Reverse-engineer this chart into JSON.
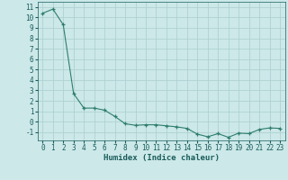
{
  "x": [
    0,
    1,
    2,
    3,
    4,
    5,
    6,
    7,
    8,
    9,
    10,
    11,
    12,
    13,
    14,
    15,
    16,
    17,
    18,
    19,
    20,
    21,
    22,
    23
  ],
  "y": [
    10.4,
    10.8,
    9.3,
    2.7,
    1.3,
    1.3,
    1.1,
    0.5,
    -0.2,
    -0.35,
    -0.3,
    -0.3,
    -0.4,
    -0.5,
    -0.65,
    -1.2,
    -1.45,
    -1.15,
    -1.5,
    -1.1,
    -1.15,
    -0.75,
    -0.6,
    -0.65
  ],
  "line_color": "#2e7d6e",
  "marker": "+",
  "bg_color": "#cce8e8",
  "grid_color": "#aacece",
  "xlabel": "Humidex (Indice chaleur)",
  "xlim": [
    -0.5,
    23.5
  ],
  "ylim": [
    -1.8,
    11.5
  ],
  "yticks": [
    -1,
    0,
    1,
    2,
    3,
    4,
    5,
    6,
    7,
    8,
    9,
    10,
    11
  ],
  "xticks": [
    0,
    1,
    2,
    3,
    4,
    5,
    6,
    7,
    8,
    9,
    10,
    11,
    12,
    13,
    14,
    15,
    16,
    17,
    18,
    19,
    20,
    21,
    22,
    23
  ],
  "font_color": "#1a5c5c",
  "tick_fontsize": 5.5,
  "label_fontsize": 6.5
}
